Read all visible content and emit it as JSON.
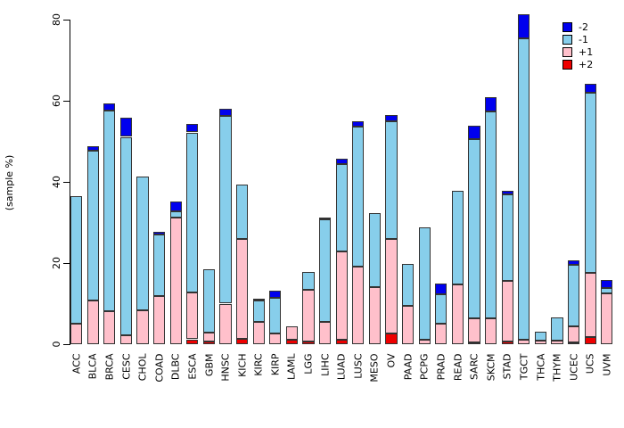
{
  "ylabel": "(sample %)",
  "legend": {
    "position": "top-right",
    "items": [
      {
        "label": "-2",
        "color": "#0000EE"
      },
      {
        "label": "-1",
        "color": "#87CEEB"
      },
      {
        "label": "+1",
        "color": "#FFC0CB"
      },
      {
        "label": "+2",
        "color": "#EE0000"
      }
    ]
  },
  "chart_data": {
    "type": "bar",
    "stacked": true,
    "title": "",
    "xlabel": "",
    "ylabel": "(sample %)",
    "ylim": [
      0,
      80
    ],
    "yticks": [
      0,
      20,
      40,
      60,
      80
    ],
    "grid": false,
    "legend_position": "top-right",
    "stack_order_bottom_to_top": [
      "+2",
      "+1",
      "-1",
      "-2"
    ],
    "categories": [
      "ACC",
      "BLCA",
      "BRCA",
      "CESC",
      "CHOL",
      "COAD",
      "DLBC",
      "ESCA",
      "GBM",
      "HNSC",
      "KICH",
      "KIRC",
      "KIRP",
      "LAML",
      "LGG",
      "LIHC",
      "LUAD",
      "LUSC",
      "MESO",
      "OV",
      "PAAD",
      "PCPG",
      "PRAD",
      "READ",
      "SARC",
      "SKCM",
      "STAD",
      "TGCT",
      "THCA",
      "THYM",
      "UCEC",
      "UCS",
      "UVM"
    ],
    "series": [
      {
        "name": "+2",
        "color": "#EE0000",
        "values": [
          0,
          0,
          0,
          0,
          0,
          0,
          0,
          1.2,
          0.6,
          0,
          1.4,
          0,
          0,
          1.0,
          0.6,
          0,
          1.0,
          0,
          0,
          2.6,
          0,
          0,
          0,
          0,
          0.5,
          0,
          0.6,
          0,
          0,
          0,
          0.4,
          1.8,
          0
        ]
      },
      {
        "name": "+1",
        "color": "#FFC0CB",
        "values": [
          5.0,
          10.8,
          8.2,
          2.1,
          8.3,
          11.8,
          31.2,
          11.5,
          2.2,
          10.0,
          24.6,
          5.4,
          2.6,
          3.5,
          12.8,
          5.6,
          21.8,
          19.1,
          14.0,
          23.3,
          9.5,
          1.2,
          5.1,
          14.7,
          5.9,
          6.3,
          15.0,
          1.0,
          0.8,
          0.8,
          4.0,
          15.8,
          12.5
        ]
      },
      {
        "name": "-1",
        "color": "#87CEEB",
        "values": [
          31.6,
          36.8,
          49.3,
          49.0,
          33.1,
          15.2,
          1.6,
          39.5,
          15.7,
          46.3,
          13.4,
          5.4,
          8.9,
          0,
          4.4,
          25.2,
          21.5,
          34.5,
          18.4,
          29.0,
          10.2,
          27.7,
          7.2,
          23.2,
          44.2,
          51.1,
          21.3,
          74.3,
          2.2,
          5.7,
          15.2,
          44.4,
          1.3
        ]
      },
      {
        "name": "-2",
        "color": "#0000EE",
        "values": [
          0,
          1.1,
          1.8,
          4.8,
          0,
          0.7,
          2.4,
          2.1,
          0,
          1.8,
          0,
          0.4,
          1.8,
          0,
          0,
          0.4,
          1.5,
          1.3,
          0,
          1.5,
          0,
          0,
          2.6,
          0,
          3.2,
          3.5,
          1.0,
          6.1,
          0,
          0,
          1.1,
          2.1,
          2.0
        ]
      }
    ],
    "totals": [
      36.6,
      48.7,
      59.3,
      55.9,
      41.4,
      27.7,
      35.2,
      54.3,
      18.5,
      58.1,
      39.4,
      11.2,
      13.3,
      4.5,
      17.8,
      31.2,
      45.8,
      54.9,
      32.4,
      56.4,
      19.7,
      28.9,
      14.9,
      37.9,
      53.8,
      60.9,
      37.9,
      81.4,
      3.0,
      6.5,
      20.7,
      64.1,
      15.8
    ]
  }
}
